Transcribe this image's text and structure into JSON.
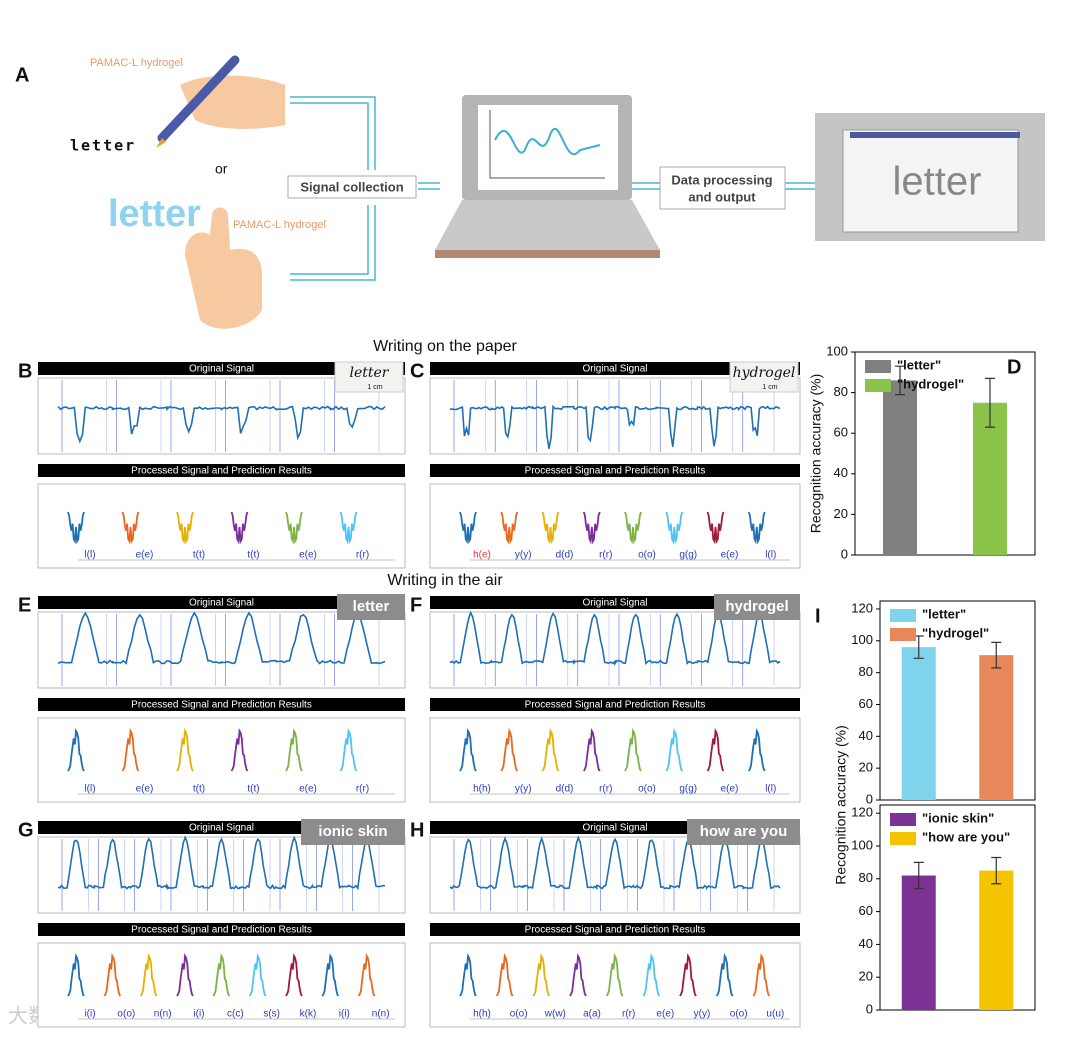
{
  "panel_a": {
    "label": "A",
    "hydrogel_label_1": "PAMAC-L hydrogel",
    "written_word": "letter",
    "or": "or",
    "air_word": "letter",
    "hydrogel_label_2": "PAMAC-L hydrogel",
    "step_1": "Signal collection",
    "step_2": [
      "Data processing",
      "and output"
    ],
    "screen_word": "letter"
  },
  "sections": [
    "Writing on the paper",
    "Writing in the air"
  ],
  "waveform_colors": [
    "#1f6fb4",
    "#e8681e",
    "#e6b000",
    "#7b2d9b",
    "#7cb342",
    "#4fc3f7",
    "#a0183a"
  ],
  "wrong_color": "#e53935",
  "signal_panels": [
    {
      "label": "B",
      "original": "Original Signal",
      "processed": "Processed Signal and Prediction Results",
      "tag": "letter",
      "scale": "1 cm",
      "predictions": [
        "l(l)",
        "e(e)",
        "t(t)",
        "t(t)",
        "e(e)",
        "r(r)"
      ],
      "wrong": []
    },
    {
      "label": "C",
      "original": "Original Signal",
      "processed": "Processed Signal and Prediction Results",
      "tag": "hydrogel",
      "scale": "1 cm",
      "predictions": [
        "h(e)",
        "y(y)",
        "d(d)",
        "r(r)",
        "o(o)",
        "g(g)",
        "e(e)",
        "l(l)"
      ],
      "wrong": [
        0
      ]
    },
    {
      "label": "E",
      "original": "Original Signal",
      "processed": "Processed Signal and Prediction Results",
      "tag": "letter",
      "predictions": [
        "l(l)",
        "e(e)",
        "t(t)",
        "t(t)",
        "e(e)",
        "r(r)"
      ],
      "wrong": []
    },
    {
      "label": "F",
      "original": "Original Signal",
      "processed": "Processed Signal and Prediction Results",
      "tag": "hydrogel",
      "predictions": [
        "h(h)",
        "y(y)",
        "d(d)",
        "r(r)",
        "o(o)",
        "g(g)",
        "e(e)",
        "l(l)"
      ],
      "wrong": []
    },
    {
      "label": "G",
      "original": "Original Signal",
      "processed": "Processed Signal and Prediction Results",
      "tag": "ionic skin",
      "predictions": [
        "i(i)",
        "o(o)",
        "n(n)",
        "i(i)",
        "c(c)",
        "s(s)",
        "k(k)",
        "i(i)",
        "n(n)"
      ],
      "wrong": []
    },
    {
      "label": "H",
      "original": "Original Signal",
      "processed": "Processed Signal and Prediction Results",
      "tag": "how are you",
      "predictions": [
        "h(h)",
        "o(o)",
        "w(w)",
        "a(a)",
        "r(r)",
        "e(e)",
        "y(y)",
        "o(o)",
        "u(u)"
      ],
      "wrong": []
    }
  ],
  "chart_data": [
    {
      "type": "bar",
      "label": "D",
      "y_label": "Recognition accuracy (%)",
      "categories": [
        "\"letter\"",
        "\"hydrogel\""
      ],
      "values": [
        86,
        75
      ],
      "errors": [
        7,
        12
      ],
      "colors": [
        "#808080",
        "#8bc34a"
      ],
      "ylim": [
        0,
        100
      ],
      "yticks": [
        0,
        20,
        40,
        60,
        80,
        100
      ],
      "legend": "upper left"
    },
    {
      "type": "bar",
      "label": "I",
      "y_label": "Recognition accuracy (%)",
      "categories": [
        "\"letter\"",
        "\"hydrogel\""
      ],
      "values": [
        96,
        91
      ],
      "errors": [
        7,
        8
      ],
      "colors": [
        "#7fd3ea",
        "#e8875a"
      ],
      "ylim": [
        0,
        125
      ],
      "yticks": [
        0,
        20,
        40,
        60,
        80,
        100,
        120
      ],
      "legend": "upper left"
    },
    {
      "type": "bar",
      "categories": [
        "\"ionic skin\"",
        "\"how are you\""
      ],
      "values": [
        82,
        85
      ],
      "errors": [
        8,
        8
      ],
      "colors": [
        "#7b3294",
        "#f5c400"
      ],
      "ylim": [
        0,
        125
      ],
      "yticks": [
        0,
        20,
        40,
        60,
        80,
        100,
        120
      ],
      "legend": "upper left"
    }
  ],
  "watermark": "大数跨境"
}
